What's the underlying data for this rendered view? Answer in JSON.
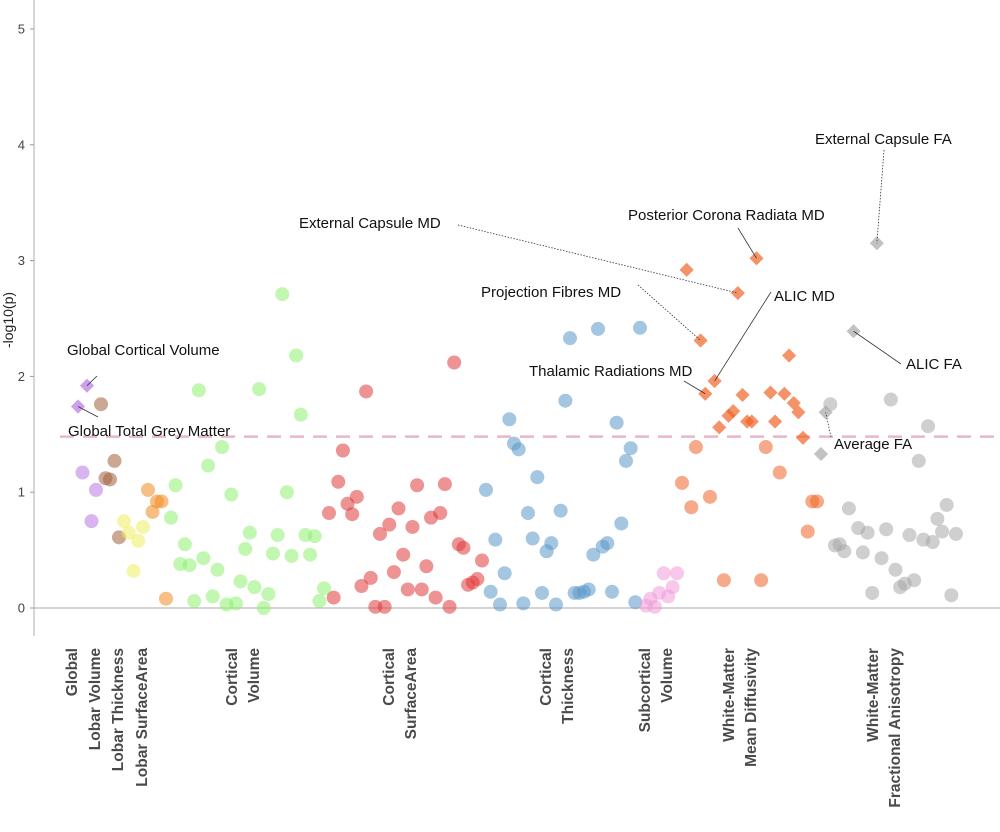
{
  "chart_data": {
    "type": "scatter",
    "title": "",
    "xlabel": "",
    "ylabel": "-log10(p)",
    "ylim": [
      -0.25,
      5.2
    ],
    "yticks": [
      "0",
      "1",
      "2",
      "3",
      "4",
      "5"
    ],
    "grid": false,
    "legend": "none",
    "threshold": {
      "value": 1.48,
      "style": "dashed",
      "color": "#e8b8c8"
    },
    "groups": [
      {
        "label": [
          "Global"
        ],
        "color": "#b878e0",
        "points": [
          [
            1.74,
            "diamond"
          ],
          [
            1.17,
            "circle"
          ],
          [
            1.92,
            "diamond"
          ],
          [
            0.75,
            "circle"
          ],
          [
            1.02,
            "circle"
          ]
        ]
      },
      {
        "label": [
          "Lobar Volume"
        ],
        "color": "#a0603c",
        "points": [
          [
            1.76,
            "circle"
          ],
          [
            1.12,
            "circle"
          ],
          [
            1.11,
            "circle"
          ],
          [
            1.27,
            "circle"
          ],
          [
            0.61,
            "circle"
          ]
        ]
      },
      {
        "label": [
          "Lobar Thickness"
        ],
        "color": "#eeee60",
        "points": [
          [
            0.75,
            "circle"
          ],
          [
            0.65,
            "circle"
          ],
          [
            0.32,
            "circle"
          ],
          [
            0.58,
            "circle"
          ],
          [
            0.7,
            "circle"
          ]
        ]
      },
      {
        "label": [
          "Lobar SurfaceArea"
        ],
        "color": "#f08a20",
        "points": [
          [
            1.02,
            "circle"
          ],
          [
            0.83,
            "circle"
          ],
          [
            0.92,
            "circle"
          ],
          [
            0.92,
            "circle"
          ],
          [
            0.08,
            "circle"
          ]
        ]
      },
      {
        "label": [
          "Cortical",
          "Volume"
        ],
        "color": "#8ef070",
        "points": [
          [
            0.78,
            "circle"
          ],
          [
            1.06,
            "circle"
          ],
          [
            0.38,
            "circle"
          ],
          [
            0.55,
            "circle"
          ],
          [
            0.37,
            "circle"
          ],
          [
            0.06,
            "circle"
          ],
          [
            1.88,
            "circle"
          ],
          [
            0.43,
            "circle"
          ],
          [
            1.23,
            "circle"
          ],
          [
            0.1,
            "circle"
          ],
          [
            0.33,
            "circle"
          ],
          [
            1.39,
            "circle"
          ],
          [
            0.03,
            "circle"
          ],
          [
            0.98,
            "circle"
          ],
          [
            0.04,
            "circle"
          ],
          [
            0.23,
            "circle"
          ],
          [
            0.51,
            "circle"
          ],
          [
            0.65,
            "circle"
          ],
          [
            0.18,
            "circle"
          ],
          [
            1.89,
            "circle"
          ],
          [
            0.0,
            "circle"
          ],
          [
            0.12,
            "circle"
          ],
          [
            0.47,
            "circle"
          ],
          [
            0.63,
            "circle"
          ],
          [
            2.71,
            "circle"
          ],
          [
            1.0,
            "circle"
          ],
          [
            0.45,
            "circle"
          ],
          [
            2.18,
            "circle"
          ],
          [
            1.67,
            "circle"
          ],
          [
            0.63,
            "circle"
          ],
          [
            0.46,
            "circle"
          ],
          [
            0.62,
            "circle"
          ],
          [
            0.06,
            "circle"
          ],
          [
            0.17,
            "circle"
          ]
        ]
      },
      {
        "label": [
          "Cortical",
          "SurfaceArea"
        ],
        "color": "#e03a3a",
        "points": [
          [
            0.82,
            "circle"
          ],
          [
            0.09,
            "circle"
          ],
          [
            1.09,
            "circle"
          ],
          [
            1.36,
            "circle"
          ],
          [
            0.9,
            "circle"
          ],
          [
            0.81,
            "circle"
          ],
          [
            0.96,
            "circle"
          ],
          [
            0.19,
            "circle"
          ],
          [
            1.87,
            "circle"
          ],
          [
            0.26,
            "circle"
          ],
          [
            0.01,
            "circle"
          ],
          [
            0.64,
            "circle"
          ],
          [
            0.01,
            "circle"
          ],
          [
            0.72,
            "circle"
          ],
          [
            0.31,
            "circle"
          ],
          [
            0.86,
            "circle"
          ],
          [
            0.46,
            "circle"
          ],
          [
            0.16,
            "circle"
          ],
          [
            0.7,
            "circle"
          ],
          [
            1.06,
            "circle"
          ],
          [
            0.16,
            "circle"
          ],
          [
            0.36,
            "circle"
          ],
          [
            0.78,
            "circle"
          ],
          [
            0.09,
            "circle"
          ],
          [
            0.82,
            "circle"
          ],
          [
            1.07,
            "circle"
          ],
          [
            0.01,
            "circle"
          ],
          [
            2.12,
            "circle"
          ],
          [
            0.55,
            "circle"
          ],
          [
            0.52,
            "circle"
          ],
          [
            0.2,
            "circle"
          ],
          [
            0.22,
            "circle"
          ],
          [
            0.25,
            "circle"
          ],
          [
            0.41,
            "circle"
          ]
        ]
      },
      {
        "label": [
          "Cortical",
          "Thickness"
        ],
        "color": "#5a98c8",
        "points": [
          [
            1.02,
            "circle"
          ],
          [
            0.14,
            "circle"
          ],
          [
            0.59,
            "circle"
          ],
          [
            0.03,
            "circle"
          ],
          [
            0.3,
            "circle"
          ],
          [
            1.63,
            "circle"
          ],
          [
            1.42,
            "circle"
          ],
          [
            1.37,
            "circle"
          ],
          [
            0.04,
            "circle"
          ],
          [
            0.82,
            "circle"
          ],
          [
            0.6,
            "circle"
          ],
          [
            1.13,
            "circle"
          ],
          [
            0.13,
            "circle"
          ],
          [
            0.49,
            "circle"
          ],
          [
            0.56,
            "circle"
          ],
          [
            0.03,
            "circle"
          ],
          [
            0.84,
            "circle"
          ],
          [
            1.79,
            "circle"
          ],
          [
            2.33,
            "circle"
          ],
          [
            0.13,
            "circle"
          ],
          [
            0.13,
            "circle"
          ],
          [
            0.14,
            "circle"
          ],
          [
            0.16,
            "circle"
          ],
          [
            0.46,
            "circle"
          ],
          [
            2.41,
            "circle"
          ],
          [
            0.53,
            "circle"
          ],
          [
            0.56,
            "circle"
          ],
          [
            0.14,
            "circle"
          ],
          [
            1.6,
            "circle"
          ],
          [
            0.73,
            "circle"
          ],
          [
            1.27,
            "circle"
          ],
          [
            1.38,
            "circle"
          ],
          [
            0.05,
            "circle"
          ],
          [
            2.42,
            "circle"
          ]
        ]
      },
      {
        "label": [
          "Subcortical",
          "Volume"
        ],
        "color": "#f09ad8",
        "points": [
          [
            0.02,
            "circle"
          ],
          [
            0.08,
            "circle"
          ],
          [
            0.01,
            "circle"
          ],
          [
            0.13,
            "circle"
          ],
          [
            0.3,
            "circle"
          ],
          [
            0.1,
            "circle"
          ],
          [
            0.18,
            "circle"
          ],
          [
            0.3,
            "circle"
          ]
        ]
      },
      {
        "label": [
          "White-Matter",
          "Mean Diffusivity"
        ],
        "color": "#f06428",
        "points": [
          [
            1.08,
            "circle"
          ],
          [
            2.92,
            "diamond"
          ],
          [
            0.87,
            "circle"
          ],
          [
            1.39,
            "circle"
          ],
          [
            2.31,
            "diamond"
          ],
          [
            1.85,
            "diamond"
          ],
          [
            0.96,
            "circle"
          ],
          [
            1.96,
            "diamond"
          ],
          [
            1.56,
            "diamond"
          ],
          [
            0.24,
            "circle"
          ],
          [
            1.66,
            "diamond"
          ],
          [
            1.7,
            "diamond"
          ],
          [
            2.72,
            "diamond"
          ],
          [
            1.84,
            "diamond"
          ],
          [
            1.61,
            "diamond"
          ],
          [
            1.61,
            "diamond"
          ],
          [
            3.02,
            "diamond"
          ],
          [
            0.24,
            "circle"
          ],
          [
            1.39,
            "circle"
          ],
          [
            1.86,
            "diamond"
          ],
          [
            1.61,
            "diamond"
          ],
          [
            1.17,
            "circle"
          ],
          [
            1.85,
            "diamond"
          ],
          [
            2.18,
            "diamond"
          ],
          [
            1.77,
            "diamond"
          ],
          [
            1.69,
            "diamond"
          ],
          [
            1.47,
            "diamond"
          ],
          [
            0.66,
            "circle"
          ],
          [
            0.92,
            "circle"
          ],
          [
            0.92,
            "circle"
          ]
        ]
      },
      {
        "label": [
          "White-Matter",
          "Fractional Anisotropy"
        ],
        "color": "#a8a8a8",
        "points": [
          [
            1.33,
            "diamond"
          ],
          [
            1.69,
            "diamond"
          ],
          [
            1.76,
            "circle"
          ],
          [
            0.54,
            "circle"
          ],
          [
            0.55,
            "circle"
          ],
          [
            0.49,
            "circle"
          ],
          [
            0.86,
            "circle"
          ],
          [
            2.39,
            "diamond"
          ],
          [
            0.69,
            "circle"
          ],
          [
            0.48,
            "circle"
          ],
          [
            0.65,
            "circle"
          ],
          [
            0.13,
            "circle"
          ],
          [
            3.15,
            "diamond"
          ],
          [
            0.43,
            "circle"
          ],
          [
            0.68,
            "circle"
          ],
          [
            1.8,
            "circle"
          ],
          [
            0.33,
            "circle"
          ],
          [
            0.18,
            "circle"
          ],
          [
            0.21,
            "circle"
          ],
          [
            0.63,
            "circle"
          ],
          [
            0.24,
            "circle"
          ],
          [
            1.27,
            "circle"
          ],
          [
            0.59,
            "circle"
          ],
          [
            1.57,
            "circle"
          ],
          [
            0.57,
            "circle"
          ],
          [
            0.77,
            "circle"
          ],
          [
            0.66,
            "circle"
          ],
          [
            0.89,
            "circle"
          ],
          [
            0.11,
            "circle"
          ],
          [
            0.64,
            "circle"
          ]
        ]
      }
    ],
    "annotations": [
      {
        "text": "Global Cortical Volume",
        "group": 0,
        "point": 2,
        "line": "solid"
      },
      {
        "text": "Global Total Grey Matter",
        "group": 0,
        "point": 0,
        "line": "solid"
      },
      {
        "text": "External Capsule MD",
        "group": 8,
        "point": 12,
        "line": "dotted"
      },
      {
        "text": "Posterior Corona Radiata MD",
        "group": 8,
        "point": 16,
        "line": "solid"
      },
      {
        "text": "External Capsule FA",
        "group": 9,
        "point": 12,
        "line": "dotted"
      },
      {
        "text": "Projection Fibres MD",
        "group": 8,
        "point": 4,
        "line": "dotted"
      },
      {
        "text": "ALIC MD",
        "group": 8,
        "point": 7,
        "line": "solid"
      },
      {
        "text": "Thalamic Radiations MD",
        "group": 8,
        "point": 5,
        "line": "solid"
      },
      {
        "text": "ALIC FA",
        "group": 9,
        "point": 7,
        "line": "solid"
      },
      {
        "text": "Average FA",
        "group": 9,
        "point": 1,
        "line": "dotted"
      }
    ]
  }
}
